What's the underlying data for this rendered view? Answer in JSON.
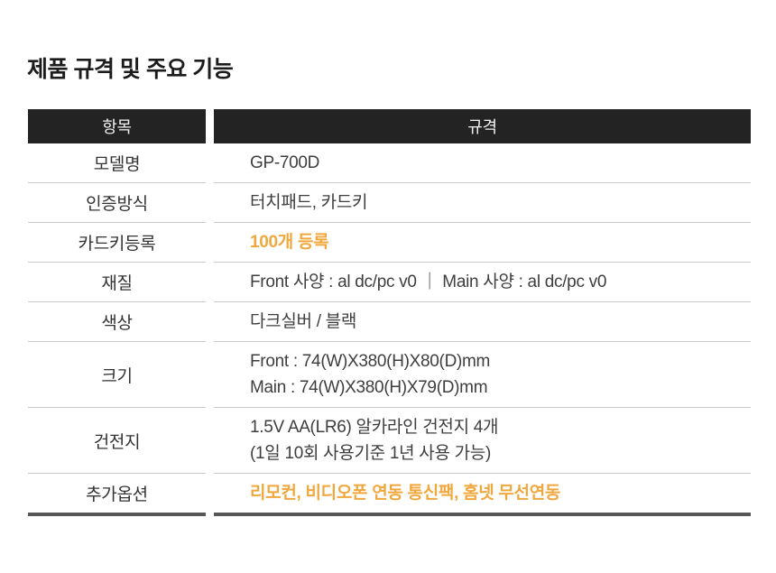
{
  "page_title": "제품 규격 및 주요 기능",
  "table": {
    "headers": {
      "item": "항목",
      "spec": "규격"
    },
    "rows": [
      {
        "label": "모델명",
        "lines": [
          "GP-700D"
        ],
        "highlight": false
      },
      {
        "label": "인증방식",
        "lines": [
          "터치패드, 카드키"
        ],
        "highlight": false
      },
      {
        "label": "카드키등록",
        "lines": [
          "100개 등록"
        ],
        "highlight": true
      },
      {
        "label": "재질",
        "lines": [
          "Front 사양 : al dc/pc v0 ｜ Main 사양 : al dc/pc v0"
        ],
        "highlight": false
      },
      {
        "label": "색상",
        "lines": [
          "다크실버 / 블랙"
        ],
        "highlight": false
      },
      {
        "label": "크기",
        "lines": [
          "Front : 74(W)X380(H)X80(D)mm",
          "Main : 74(W)X380(H)X79(D)mm"
        ],
        "highlight": false
      },
      {
        "label": "건전지",
        "lines": [
          "1.5V AA(LR6) 알카라인 건전지 4개",
          "(1일 10회 사용기준 1년 사용 가능)"
        ],
        "highlight": false
      },
      {
        "label": "추가옵션",
        "lines": [
          "리모컨, 비디오폰 연동 통신팩, 홈넷 무선연동"
        ],
        "highlight": true
      }
    ]
  },
  "colors": {
    "header_bg": "#232323",
    "header_text": "#f2f2f2",
    "body_text": "#3e3e3e",
    "divider": "#c9c9c9",
    "bottom_border": "#575757",
    "highlight": "#f0a83e",
    "title": "#1c1c1c"
  }
}
